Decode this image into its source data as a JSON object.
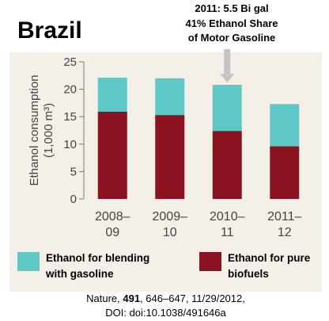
{
  "title": "Brazil",
  "annotation": [
    "2011: 5.5 Bi gal",
    "41% Ethanol Share",
    "of Motor Gasoline"
  ],
  "chart_data": {
    "type": "bar",
    "stacked": true,
    "categories": [
      [
        "2008–",
        "09"
      ],
      [
        "2009–",
        "10"
      ],
      [
        "2010–",
        "11"
      ],
      [
        "2011–",
        "12"
      ]
    ],
    "series": [
      {
        "name": "Ethanol for pure biofuels",
        "values": [
          15.9,
          15.3,
          12.4,
          9.6
        ],
        "color": "#8b1320"
      },
      {
        "name": "Ethanol for blending with gasoline",
        "values": [
          6.2,
          6.7,
          8.4,
          7.7
        ],
        "color": "#5ec8c6"
      }
    ],
    "ylabel": [
      "Ethanol consumption",
      "(1,000 m³)"
    ],
    "ylim": [
      0,
      25
    ],
    "yticks": [
      0,
      5,
      10,
      15,
      20,
      25
    ],
    "grid": false,
    "arrow_target": "2010–11"
  },
  "legend": [
    {
      "label": "Ethanol for blending\nwith gasoline",
      "color": "#5ec8c6"
    },
    {
      "label": "Ethanol for pure\nbiofuels",
      "color": "#8b1320"
    }
  ],
  "citation": {
    "line1_prefix": "Nature, ",
    "volume": "491",
    "line1_suffix": ", 646–647, 11/29/2012,",
    "line2": "DOI: doi:10.1038/491646a"
  }
}
